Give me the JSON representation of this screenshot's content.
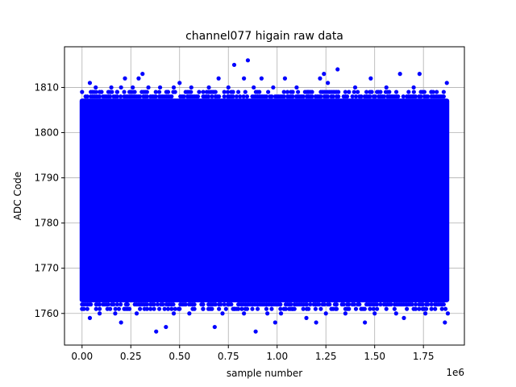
{
  "chart_data": {
    "type": "scatter",
    "title": "channel077 higain raw data",
    "xlabel": "sample number",
    "ylabel": "ADC Code",
    "x_offset_text": "1e6",
    "xlim": [
      -90000,
      1960000
    ],
    "ylim": [
      1753,
      1819
    ],
    "x_ticks": [
      0,
      250000,
      500000,
      750000,
      1000000,
      1250000,
      1500000,
      1750000
    ],
    "x_tick_labels": [
      "0.00",
      "0.25",
      "0.50",
      "0.75",
      "1.00",
      "1.25",
      "1.50",
      "1.75"
    ],
    "y_ticks": [
      1760,
      1770,
      1780,
      1790,
      1800,
      1810
    ],
    "y_tick_labels": [
      "1760",
      "1770",
      "1780",
      "1790",
      "1800",
      "1810"
    ],
    "grid": true,
    "color": "#0000ff",
    "x_range": [
      0,
      1870000
    ],
    "dense_band": [
      1763,
      1807
    ],
    "series": [
      {
        "points": [
          [
            40000,
            1811
          ],
          [
            70000,
            1810
          ],
          [
            100000,
            1809
          ],
          [
            150000,
            1810
          ],
          [
            180000,
            1809
          ],
          [
            200000,
            1810
          ],
          [
            220000,
            1812
          ],
          [
            260000,
            1810
          ],
          [
            290000,
            1812
          ],
          [
            310000,
            1813
          ],
          [
            340000,
            1810
          ],
          [
            400000,
            1810
          ],
          [
            440000,
            1809
          ],
          [
            470000,
            1810
          ],
          [
            500000,
            1811
          ],
          [
            560000,
            1810
          ],
          [
            600000,
            1809
          ],
          [
            650000,
            1810
          ],
          [
            700000,
            1812
          ],
          [
            750000,
            1810
          ],
          [
            780000,
            1815
          ],
          [
            830000,
            1812
          ],
          [
            850000,
            1816
          ],
          [
            880000,
            1810
          ],
          [
            920000,
            1812
          ],
          [
            980000,
            1810
          ],
          [
            1040000,
            1812
          ],
          [
            1100000,
            1810
          ],
          [
            1160000,
            1809
          ],
          [
            1220000,
            1812
          ],
          [
            1240000,
            1813
          ],
          [
            1260000,
            1811
          ],
          [
            1310000,
            1814
          ],
          [
            1350000,
            1809
          ],
          [
            1400000,
            1810
          ],
          [
            1480000,
            1812
          ],
          [
            1520000,
            1809
          ],
          [
            1560000,
            1810
          ],
          [
            1630000,
            1813
          ],
          [
            1700000,
            1810
          ],
          [
            1730000,
            1813
          ],
          [
            1790000,
            1809
          ],
          [
            1870000,
            1811
          ],
          [
            40000,
            1759
          ],
          [
            90000,
            1760
          ],
          [
            130000,
            1761
          ],
          [
            170000,
            1760
          ],
          [
            200000,
            1758
          ],
          [
            230000,
            1762
          ],
          [
            280000,
            1760
          ],
          [
            320000,
            1761
          ],
          [
            380000,
            1756
          ],
          [
            430000,
            1757
          ],
          [
            470000,
            1760
          ],
          [
            500000,
            1761
          ],
          [
            550000,
            1760
          ],
          [
            620000,
            1761
          ],
          [
            680000,
            1757
          ],
          [
            720000,
            1760
          ],
          [
            780000,
            1761
          ],
          [
            830000,
            1760
          ],
          [
            890000,
            1756
          ],
          [
            950000,
            1760
          ],
          [
            990000,
            1758
          ],
          [
            1020000,
            1760
          ],
          [
            1080000,
            1761
          ],
          [
            1150000,
            1759
          ],
          [
            1200000,
            1758
          ],
          [
            1250000,
            1760
          ],
          [
            1300000,
            1761
          ],
          [
            1350000,
            1760
          ],
          [
            1420000,
            1762
          ],
          [
            1450000,
            1758
          ],
          [
            1500000,
            1760
          ],
          [
            1560000,
            1761
          ],
          [
            1610000,
            1760
          ],
          [
            1650000,
            1759
          ],
          [
            1700000,
            1761
          ],
          [
            1760000,
            1760
          ],
          [
            1810000,
            1761
          ],
          [
            1860000,
            1758
          ],
          [
            1875000,
            1760
          ]
        ]
      }
    ]
  }
}
